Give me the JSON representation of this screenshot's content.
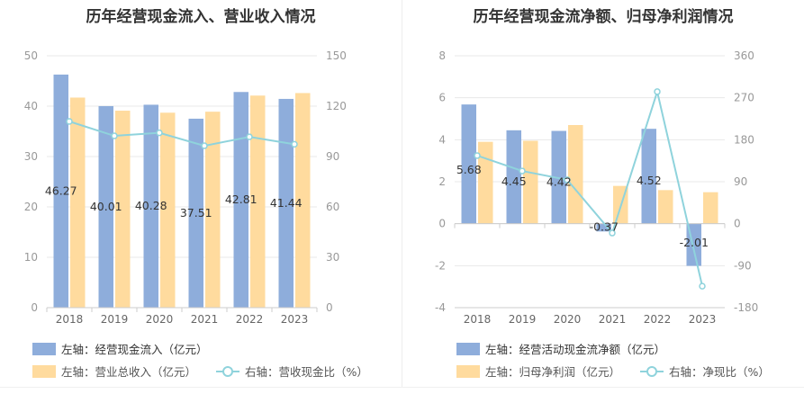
{
  "colors": {
    "bar1": "#8eaddb",
    "bar2": "#ffdb9e",
    "line": "#8fd3dc",
    "grid": "#e8e8e8",
    "axis": "#999999",
    "label": "#333333"
  },
  "chart_data": [
    {
      "type": "bar",
      "title": "历年经营现金流入、营业收入情况",
      "categories": [
        "2018",
        "2019",
        "2020",
        "2021",
        "2022",
        "2023"
      ],
      "y_left": {
        "ylim": [
          0,
          50
        ],
        "ticks": [
          "0",
          "10",
          "20",
          "30",
          "40",
          "50"
        ]
      },
      "y_right": {
        "ylim": [
          0,
          150
        ],
        "ticks": [
          "0",
          "30",
          "60",
          "90",
          "120",
          "150"
        ]
      },
      "series": [
        {
          "name": "左轴：经营现金流入（亿元）",
          "axis": "left",
          "kind": "bar",
          "values": [
            46.27,
            40.01,
            40.28,
            37.51,
            42.81,
            41.44
          ],
          "labels": [
            "46.27",
            "40.01",
            "40.28",
            "37.51",
            "42.81",
            "41.44"
          ]
        },
        {
          "name": "左轴：营业总收入（亿元）",
          "axis": "left",
          "kind": "bar",
          "values": [
            41.7,
            39.1,
            38.7,
            38.9,
            42.1,
            42.6
          ]
        },
        {
          "name": "右轴：营收现金比（%）",
          "axis": "right",
          "kind": "line",
          "values": [
            110.9,
            102.3,
            104.1,
            96.4,
            101.7,
            97.3
          ]
        }
      ],
      "legend": [
        {
          "text": "左轴：经营现金流入（亿元）",
          "color_key": "bar1",
          "kind": "box"
        },
        {
          "text": "左轴：营业总收入（亿元）",
          "color_key": "bar2",
          "kind": "box"
        },
        {
          "text": "右轴：营收现金比（%）",
          "color_key": "line",
          "kind": "line"
        }
      ]
    },
    {
      "type": "bar",
      "title": "历年经营现金流净额、归母净利润情况",
      "categories": [
        "2018",
        "2019",
        "2020",
        "2021",
        "2022",
        "2023"
      ],
      "y_left": {
        "ylim": [
          -4,
          8
        ],
        "ticks": [
          "-4",
          "-2",
          "0",
          "2",
          "4",
          "6",
          "8"
        ]
      },
      "y_right": {
        "ylim": [
          -180,
          360
        ],
        "ticks": [
          "-180",
          "-90",
          "0",
          "90",
          "180",
          "270",
          "360"
        ]
      },
      "series": [
        {
          "name": "左轴：经营活动现金流净额（亿元）",
          "axis": "left",
          "kind": "bar",
          "values": [
            5.68,
            4.45,
            4.42,
            -0.37,
            4.52,
            -2.01
          ],
          "labels": [
            "5.68",
            "4.45",
            "4.42",
            "-0.37",
            "4.52",
            "-2.01"
          ]
        },
        {
          "name": "左轴：归母净利润（亿元）",
          "axis": "left",
          "kind": "bar",
          "values": [
            3.9,
            3.95,
            4.7,
            1.8,
            1.6,
            1.5
          ]
        },
        {
          "name": "右轴：净现比（%）",
          "axis": "right",
          "kind": "line",
          "values": [
            146,
            113,
            94,
            -20,
            283,
            -134
          ]
        }
      ],
      "legend": [
        {
          "text": "左轴：经营活动现金流净额（亿元）",
          "color_key": "bar1",
          "kind": "box"
        },
        {
          "text": "左轴：归母净利润（亿元）",
          "color_key": "bar2",
          "kind": "box"
        },
        {
          "text": "右轴：净现比（%）",
          "color_key": "line",
          "kind": "line"
        }
      ]
    }
  ]
}
